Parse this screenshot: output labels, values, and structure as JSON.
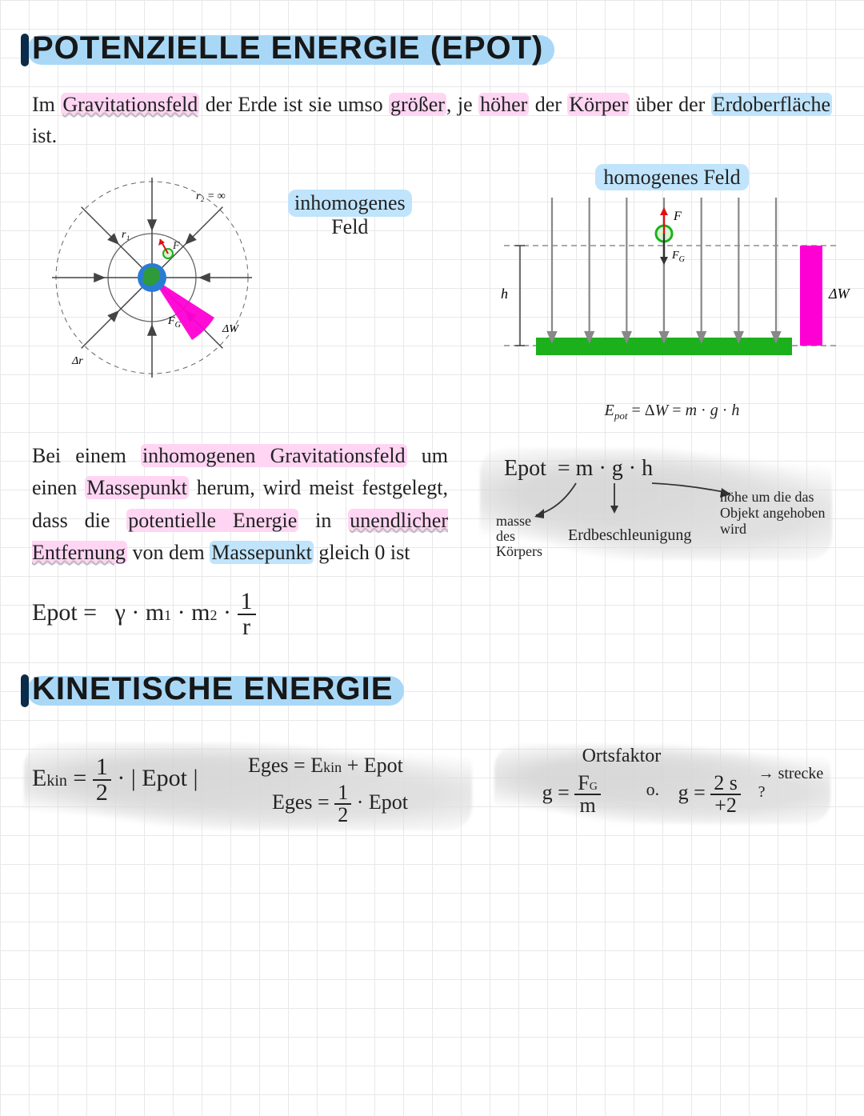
{
  "colors": {
    "grid": "#e8e8e8",
    "heading_highlight": "#a9d8f7",
    "heading_bar": "#0a2b4a",
    "text": "#171717",
    "pink_hl": "#ffd5f3",
    "blue_hl": "#bfe4fb",
    "magenta": "#ff00d4",
    "green_ground": "#1cb01c",
    "earth_blue": "#2a7bd6",
    "earth_green": "#2f9a3a",
    "arrow_gray": "#888888",
    "smudge": "#d5d5d5"
  },
  "heading1": "POTENZIELLE ENERGIE (EPOT)",
  "heading2": "KINETISCHE ENERGIE",
  "intro_parts": {
    "p1a": "Im ",
    "p1b": "Gravitationsfeld",
    "p1c": " der Erde ist sie umso ",
    "p1d": "größer",
    "p1e": ", je ",
    "p1f": "höher",
    "p1g": " der ",
    "p1h": "Körper",
    "p1i": " über der ",
    "p1j": "Erdoberfläche",
    "p1k": " ist."
  },
  "inhomog_label": "inhomogenes",
  "inhomog_label2": "Feld",
  "homog_label": "homogenes Feld",
  "diagram_radial": {
    "r1": "r₁",
    "r2": "r₂ = ∞",
    "F": "F",
    "FG": "F_G",
    "dW": "ΔW",
    "dr": "Δr"
  },
  "diagram_homog": {
    "F": "F",
    "FG": "F_G",
    "h": "h",
    "dW": "ΔW",
    "formula": "E_pot = ΔW = m · g · h",
    "arrow_count": 7
  },
  "para2_parts": {
    "a": "Bei einem ",
    "b": "inhomogenen Gravitationsfeld",
    "c": " um einen ",
    "d": "Massepunkt",
    "e": " herum, wird meist festgelegt, dass die ",
    "f": "potentielle Energie",
    "g": " in ",
    "h": "unendlicher Entfernung",
    "i": " von dem ",
    "j": "Massepunkt",
    "k": " gleich 0 ist"
  },
  "epot_formula_text": "Epot =   γ · m₁ · m₂ · 1/r",
  "epot_explain": {
    "line": "Epot  = m · g · h",
    "mass": "masse des Körpers",
    "g": "Erdbeschleunigung",
    "h": "höhe um die das Objekt angehoben wird"
  },
  "kin": {
    "ekin": "E_kin = ½ · | Epot |",
    "eges1": "Eges = E_kin + Epot",
    "eges2": "Eges = ½ · Epot"
  },
  "orts": {
    "title": "Ortsfaktor",
    "g1_lhs": "g =",
    "g1_num": "F_G",
    "g1_den": "m",
    "or": "o.",
    "g2_lhs": "g =",
    "g2_num": "2 s",
    "g2_den": "+2",
    "arrow_note": "→ strecke ?"
  }
}
